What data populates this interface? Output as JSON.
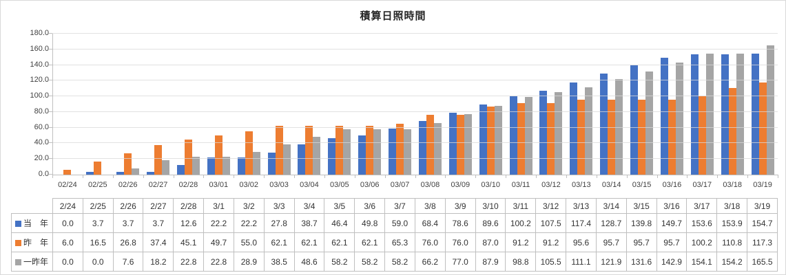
{
  "chart_data": {
    "type": "bar",
    "title": "積算日照時間",
    "xlabel": "",
    "ylabel": "",
    "ylim": [
      0,
      180
    ],
    "ytick_step": 20,
    "ytick_decimals": 1,
    "grid": true,
    "legend_position": "data-table-left",
    "categories": [
      "02/24",
      "02/25",
      "02/26",
      "02/27",
      "02/28",
      "03/01",
      "03/02",
      "03/03",
      "03/04",
      "03/05",
      "03/06",
      "03/07",
      "03/08",
      "03/09",
      "03/10",
      "03/11",
      "03/12",
      "03/13",
      "03/14",
      "03/15",
      "03/16",
      "03/17",
      "03/18",
      "03/19"
    ],
    "table_headers": [
      "2/24",
      "2/25",
      "2/26",
      "2/27",
      "2/28",
      "3/1",
      "3/2",
      "3/3",
      "3/4",
      "3/5",
      "3/6",
      "3/7",
      "3/8",
      "3/9",
      "3/10",
      "3/11",
      "3/12",
      "3/13",
      "3/14",
      "3/15",
      "3/16",
      "3/17",
      "3/18",
      "3/19"
    ],
    "series": [
      {
        "name": "当　年",
        "color": "#4472C4",
        "values": [
          0.0,
          3.7,
          3.7,
          3.7,
          12.6,
          22.2,
          22.2,
          27.8,
          38.7,
          46.4,
          49.8,
          59.0,
          68.4,
          78.6,
          89.6,
          100.2,
          107.5,
          117.4,
          128.7,
          139.8,
          149.7,
          153.6,
          153.9,
          154.7
        ]
      },
      {
        "name": "昨　年",
        "color": "#ED7D31",
        "values": [
          6.0,
          16.5,
          26.8,
          37.4,
          45.1,
          49.7,
          55.0,
          62.1,
          62.1,
          62.1,
          62.1,
          65.3,
          76.0,
          76.0,
          87.0,
          91.2,
          91.2,
          95.6,
          95.7,
          95.7,
          95.7,
          100.2,
          110.8,
          117.3
        ]
      },
      {
        "name": "一昨年",
        "color": "#A5A5A5",
        "values": [
          0.0,
          0.0,
          7.6,
          18.2,
          22.8,
          22.8,
          28.9,
          38.5,
          48.6,
          58.2,
          58.2,
          58.2,
          66.2,
          77.0,
          87.9,
          98.8,
          105.5,
          111.1,
          121.9,
          131.6,
          142.9,
          154.1,
          154.2,
          165.5
        ]
      }
    ],
    "colors": {
      "gridline": "#D9D9D9",
      "axis": "#BFBFBF",
      "text": "#404040",
      "table_border": "#BFBFBF"
    }
  }
}
